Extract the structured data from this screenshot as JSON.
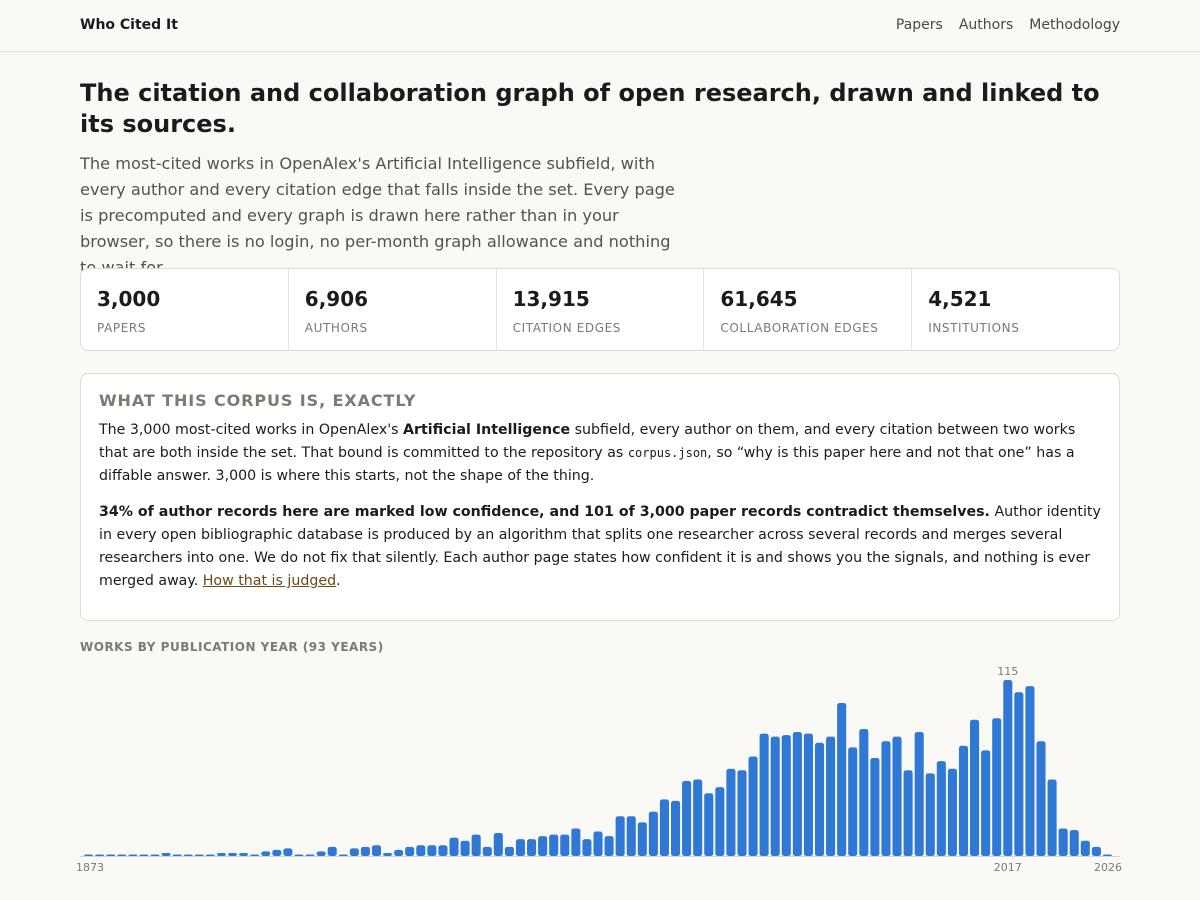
{
  "header": {
    "brand": "Who Cited It",
    "nav": [
      "Papers",
      "Authors",
      "Methodology"
    ]
  },
  "hero": {
    "title": "The citation and collaboration graph of open research, drawn and linked to its sources.",
    "subtitle": "The most-cited works in OpenAlex's Artificial Intelligence subfield, with every author and every citation edge that falls inside the set. Every page is precomputed and every graph is drawn here rather than in your browser, so there is no login, no per-month graph allowance and nothing to wait for."
  },
  "stats": [
    {
      "value": "3,000",
      "label": "PAPERS"
    },
    {
      "value": "6,906",
      "label": "AUTHORS"
    },
    {
      "value": "13,915",
      "label": "CITATION EDGES"
    },
    {
      "value": "61,645",
      "label": "COLLABORATION EDGES"
    },
    {
      "value": "4,521",
      "label": "INSTITUTIONS"
    }
  ],
  "corpus": {
    "title": "WHAT THIS CORPUS IS, EXACTLY",
    "p1_a": "The 3,000 most-cited works in OpenAlex's ",
    "p1_bold": "Artificial Intelligence",
    "p1_b": " subfield, every author on them, and every citation between two works that are both inside the set. That bound is committed to the repository as ",
    "p1_code": "corpus.json",
    "p1_c": ", so “why is this paper here and not that one” has a diffable answer. 3,000 is where this starts, not the shape of the thing.",
    "p2_bold": "34% of author records here are marked low confidence, and 101 of 3,000 paper records contradict themselves.",
    "p2_a": " Author identity in every open bibliographic database is produced by an algorithm that splits one researcher across several records and merges several researchers into one. We do not fix that silently. Each author page states how confident it is and shows you the signals, and nothing is ever merged away. ",
    "p2_link": "How that is judged",
    "p2_end": "."
  },
  "chart_data": {
    "type": "bar",
    "title": "WORKS BY PUBLICATION YEAR (93 YEARS)",
    "accent": "#2f78d6",
    "ylim": [
      0,
      115
    ],
    "x_tick_labels": [
      "1873",
      "2017",
      "2026"
    ],
    "peak_label": "115",
    "values": [
      1,
      1,
      1,
      1,
      1,
      1,
      1,
      2,
      1,
      1,
      1,
      1,
      2,
      2,
      2,
      1,
      3,
      4,
      5,
      1,
      1,
      3,
      6,
      1,
      5,
      6,
      7,
      2,
      4,
      6,
      7,
      7,
      7,
      12,
      10,
      14,
      6,
      15,
      6,
      11,
      11,
      13,
      14,
      14,
      18,
      11,
      16,
      13,
      26,
      26,
      22,
      29,
      37,
      36,
      49,
      50,
      41,
      45,
      57,
      56,
      65,
      80,
      78,
      79,
      81,
      80,
      74,
      78,
      100,
      71,
      83,
      64,
      75,
      78,
      56,
      81,
      54,
      62,
      57,
      72,
      89,
      69,
      90,
      115,
      107,
      111,
      75,
      50,
      18,
      17,
      10,
      6,
      1
    ]
  }
}
